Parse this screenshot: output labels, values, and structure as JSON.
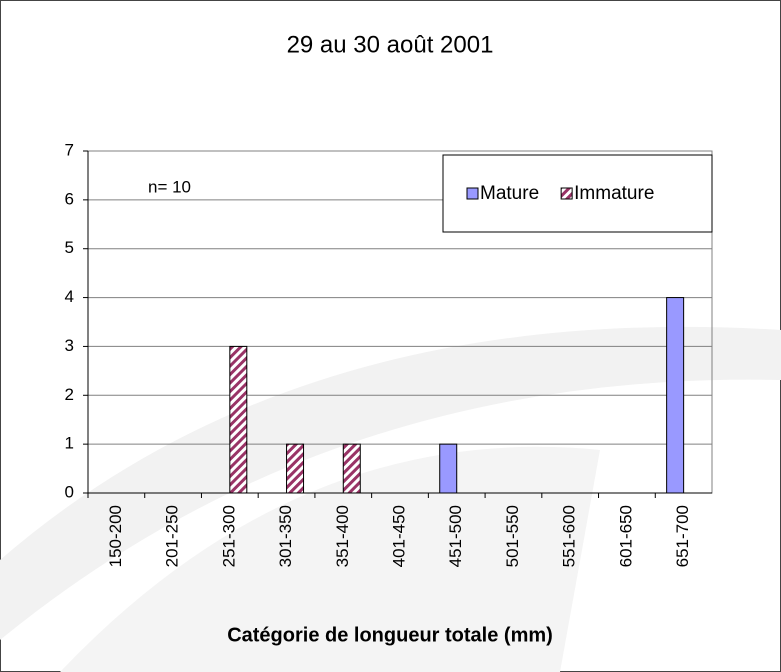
{
  "chart_data": {
    "type": "bar",
    "title": "29 au 30 août 2001",
    "x_label": "Catégorie de longueur totale (mm)",
    "annotation": "n= 10",
    "categories": [
      "150-200",
      "201-250",
      "251-300",
      "301-350",
      "351-400",
      "401-450",
      "451-500",
      "501-550",
      "551-600",
      "601-650",
      "651-700"
    ],
    "series": [
      {
        "name": "Mature",
        "color": "#9999ff",
        "values": [
          0,
          0,
          0,
          0,
          0,
          0,
          1,
          0,
          0,
          0,
          4
        ]
      },
      {
        "name": "Immature",
        "color": "#993366",
        "values": [
          0,
          0,
          3,
          1,
          1,
          0,
          0,
          0,
          0,
          0,
          0
        ]
      }
    ],
    "ylim": [
      0,
      7
    ],
    "yticks": [
      0,
      1,
      2,
      3,
      4,
      5,
      6,
      7
    ],
    "grid": true,
    "legend": "upper right"
  }
}
